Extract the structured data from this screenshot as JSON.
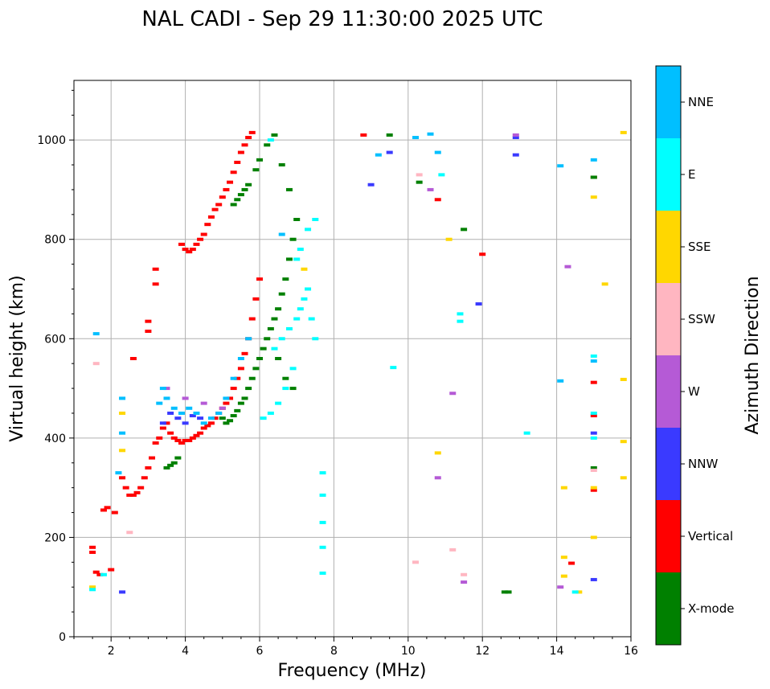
{
  "chart_data": {
    "type": "scatter",
    "title": "NAL CADI - Sep 29 11:30:00 2025 UTC",
    "xlabel": "Frequency (MHz)",
    "ylabel": "Virtual height (km)",
    "xlim": [
      1,
      16
    ],
    "ylim": [
      0,
      1120
    ],
    "xticks": [
      2,
      4,
      6,
      8,
      10,
      12,
      14,
      16
    ],
    "yticks": [
      0,
      200,
      400,
      600,
      800,
      1000
    ],
    "grid": true,
    "colorbar": {
      "label": "Azimuth Direction",
      "categories": [
        {
          "name": "X-mode",
          "color": "#008000"
        },
        {
          "name": "Vertical",
          "color": "#ff0000"
        },
        {
          "name": "NNW",
          "color": "#3a3aff"
        },
        {
          "name": "W",
          "color": "#b55ad6"
        },
        {
          "name": "SSW",
          "color": "#ffb6c1"
        },
        {
          "name": "SSE",
          "color": "#ffd700"
        },
        {
          "name": "E",
          "color": "#00ffff"
        },
        {
          "name": "NNE",
          "color": "#00bfff"
        }
      ]
    },
    "series": [
      {
        "name": "Vertical",
        "points": [
          [
            1.5,
            180
          ],
          [
            1.5,
            170
          ],
          [
            1.6,
            130
          ],
          [
            1.7,
            125
          ],
          [
            1.8,
            255
          ],
          [
            1.9,
            260
          ],
          [
            2.0,
            135
          ],
          [
            2.1,
            250
          ],
          [
            2.3,
            320
          ],
          [
            2.4,
            300
          ],
          [
            2.5,
            285
          ],
          [
            2.6,
            285
          ],
          [
            2.7,
            290
          ],
          [
            2.8,
            300
          ],
          [
            2.9,
            320
          ],
          [
            3.0,
            340
          ],
          [
            3.1,
            360
          ],
          [
            3.2,
            390
          ],
          [
            3.3,
            400
          ],
          [
            3.4,
            420
          ],
          [
            3.5,
            430
          ],
          [
            3.6,
            410
          ],
          [
            3.7,
            400
          ],
          [
            3.8,
            395
          ],
          [
            3.9,
            390
          ],
          [
            4.0,
            395
          ],
          [
            4.1,
            395
          ],
          [
            4.2,
            400
          ],
          [
            4.3,
            405
          ],
          [
            4.4,
            410
          ],
          [
            4.5,
            420
          ],
          [
            4.6,
            425
          ],
          [
            4.7,
            430
          ],
          [
            4.8,
            440
          ],
          [
            4.9,
            450
          ],
          [
            5.0,
            460
          ],
          [
            5.1,
            470
          ],
          [
            5.2,
            480
          ],
          [
            5.3,
            500
          ],
          [
            5.4,
            520
          ],
          [
            5.5,
            540
          ],
          [
            5.6,
            570
          ],
          [
            5.7,
            600
          ],
          [
            5.8,
            640
          ],
          [
            5.9,
            680
          ],
          [
            6.0,
            720
          ],
          [
            3.9,
            790
          ],
          [
            4.0,
            780
          ],
          [
            4.1,
            775
          ],
          [
            4.2,
            780
          ],
          [
            4.3,
            790
          ],
          [
            4.4,
            800
          ],
          [
            4.5,
            810
          ],
          [
            4.6,
            830
          ],
          [
            4.7,
            845
          ],
          [
            4.8,
            860
          ],
          [
            4.9,
            870
          ],
          [
            5.0,
            885
          ],
          [
            5.1,
            900
          ],
          [
            5.2,
            915
          ],
          [
            5.3,
            935
          ],
          [
            5.4,
            955
          ],
          [
            5.5,
            975
          ],
          [
            5.6,
            990
          ],
          [
            5.7,
            1005
          ],
          [
            5.8,
            1015
          ],
          [
            3.2,
            710
          ],
          [
            3.2,
            740
          ],
          [
            3.0,
            635
          ],
          [
            3.0,
            615
          ],
          [
            2.6,
            560
          ],
          [
            12.0,
            770
          ],
          [
            10.8,
            880
          ],
          [
            15.0,
            925
          ],
          [
            15.0,
            512
          ],
          [
            15.0,
            445
          ],
          [
            15.0,
            295
          ],
          [
            14.4,
            148
          ],
          [
            8.8,
            1010
          ]
        ]
      },
      {
        "name": "X-mode",
        "points": [
          [
            5.0,
            440
          ],
          [
            5.1,
            430
          ],
          [
            5.2,
            435
          ],
          [
            5.3,
            445
          ],
          [
            5.4,
            455
          ],
          [
            5.5,
            470
          ],
          [
            5.6,
            480
          ],
          [
            5.7,
            500
          ],
          [
            5.8,
            520
          ],
          [
            5.9,
            540
          ],
          [
            6.0,
            560
          ],
          [
            6.1,
            580
          ],
          [
            6.2,
            600
          ],
          [
            6.3,
            620
          ],
          [
            6.4,
            640
          ],
          [
            6.5,
            660
          ],
          [
            6.6,
            690
          ],
          [
            6.7,
            720
          ],
          [
            6.8,
            760
          ],
          [
            6.9,
            800
          ],
          [
            7.0,
            840
          ],
          [
            5.3,
            870
          ],
          [
            5.4,
            880
          ],
          [
            5.5,
            890
          ],
          [
            5.6,
            900
          ],
          [
            5.7,
            910
          ],
          [
            5.9,
            940
          ],
          [
            6.0,
            960
          ],
          [
            6.2,
            990
          ],
          [
            6.4,
            1010
          ],
          [
            6.6,
            950
          ],
          [
            6.8,
            900
          ],
          [
            6.5,
            560
          ],
          [
            6.7,
            520
          ],
          [
            6.9,
            500
          ],
          [
            3.5,
            340
          ],
          [
            3.6,
            345
          ],
          [
            3.7,
            350
          ],
          [
            3.8,
            360
          ],
          [
            12.6,
            90
          ],
          [
            12.7,
            90
          ],
          [
            15.0,
            340
          ],
          [
            15.0,
            925
          ],
          [
            11.5,
            820
          ],
          [
            10.3,
            915
          ],
          [
            9.5,
            1010
          ]
        ]
      },
      {
        "name": "NNW",
        "points": [
          [
            3.4,
            430
          ],
          [
            3.6,
            450
          ],
          [
            3.8,
            440
          ],
          [
            4.0,
            430
          ],
          [
            4.2,
            445
          ],
          [
            4.4,
            440
          ],
          [
            2.3,
            90
          ],
          [
            12.9,
            970
          ],
          [
            12.9,
            1005
          ],
          [
            15.0,
            410
          ],
          [
            15.0,
            115
          ],
          [
            11.9,
            670
          ],
          [
            9.0,
            910
          ],
          [
            9.5,
            975
          ]
        ]
      },
      {
        "name": "W",
        "points": [
          [
            3.5,
            500
          ],
          [
            4.0,
            480
          ],
          [
            4.5,
            470
          ],
          [
            5.0,
            460
          ],
          [
            14.3,
            745
          ],
          [
            11.2,
            490
          ],
          [
            10.8,
            320
          ],
          [
            12.9,
            1010
          ],
          [
            14.1,
            100
          ],
          [
            11.5,
            110
          ],
          [
            10.6,
            900
          ]
        ]
      },
      {
        "name": "SSW",
        "points": [
          [
            10.2,
            150
          ],
          [
            11.2,
            175
          ],
          [
            11.5,
            125
          ],
          [
            1.6,
            550
          ],
          [
            2.5,
            210
          ],
          [
            10.3,
            930
          ],
          [
            15.0,
            335
          ]
        ]
      },
      {
        "name": "SSE",
        "points": [
          [
            2.3,
            450
          ],
          [
            2.3,
            375
          ],
          [
            7.2,
            740
          ],
          [
            15.0,
            885
          ],
          [
            15.3,
            710
          ],
          [
            15.8,
            518
          ],
          [
            15.8,
            393
          ],
          [
            15.8,
            320
          ],
          [
            15.8,
            1015
          ],
          [
            14.2,
            300
          ],
          [
            14.2,
            160
          ],
          [
            14.2,
            122
          ],
          [
            14.6,
            90
          ],
          [
            15.0,
            200
          ],
          [
            15.0,
            300
          ],
          [
            10.8,
            370
          ],
          [
            11.1,
            800
          ],
          [
            1.5,
            100
          ]
        ]
      },
      {
        "name": "E",
        "points": [
          [
            6.4,
            580
          ],
          [
            6.6,
            600
          ],
          [
            6.8,
            620
          ],
          [
            7.0,
            640
          ],
          [
            7.1,
            660
          ],
          [
            7.2,
            680
          ],
          [
            7.3,
            700
          ],
          [
            7.4,
            640
          ],
          [
            7.5,
            600
          ],
          [
            7.0,
            760
          ],
          [
            7.1,
            780
          ],
          [
            7.3,
            820
          ],
          [
            7.5,
            840
          ],
          [
            6.9,
            540
          ],
          [
            6.7,
            500
          ],
          [
            6.5,
            470
          ],
          [
            6.3,
            450
          ],
          [
            6.1,
            440
          ],
          [
            7.7,
            330
          ],
          [
            7.7,
            285
          ],
          [
            7.7,
            230
          ],
          [
            7.7,
            180
          ],
          [
            7.7,
            128
          ],
          [
            9.6,
            542
          ],
          [
            13.2,
            410
          ],
          [
            15.0,
            565
          ],
          [
            15.0,
            450
          ],
          [
            15.0,
            400
          ],
          [
            14.5,
            90
          ],
          [
            11.4,
            650
          ],
          [
            11.4,
            635
          ],
          [
            10.9,
            930
          ],
          [
            6.3,
            1000
          ],
          [
            1.5,
            95
          ],
          [
            1.8,
            125
          ]
        ]
      },
      {
        "name": "NNE",
        "points": [
          [
            3.3,
            470
          ],
          [
            3.4,
            500
          ],
          [
            3.5,
            480
          ],
          [
            3.7,
            460
          ],
          [
            3.9,
            450
          ],
          [
            4.1,
            460
          ],
          [
            4.3,
            450
          ],
          [
            4.5,
            430
          ],
          [
            4.7,
            440
          ],
          [
            4.9,
            450
          ],
          [
            5.1,
            480
          ],
          [
            5.3,
            520
          ],
          [
            5.5,
            560
          ],
          [
            5.7,
            600
          ],
          [
            2.3,
            480
          ],
          [
            2.3,
            410
          ],
          [
            2.2,
            330
          ],
          [
            15.0,
            960
          ],
          [
            15.0,
            555
          ],
          [
            14.1,
            515
          ],
          [
            14.1,
            948
          ],
          [
            9.2,
            970
          ],
          [
            10.2,
            1005
          ],
          [
            10.8,
            975
          ],
          [
            10.6,
            1012
          ],
          [
            1.6,
            610
          ],
          [
            6.6,
            810
          ]
        ]
      }
    ]
  }
}
